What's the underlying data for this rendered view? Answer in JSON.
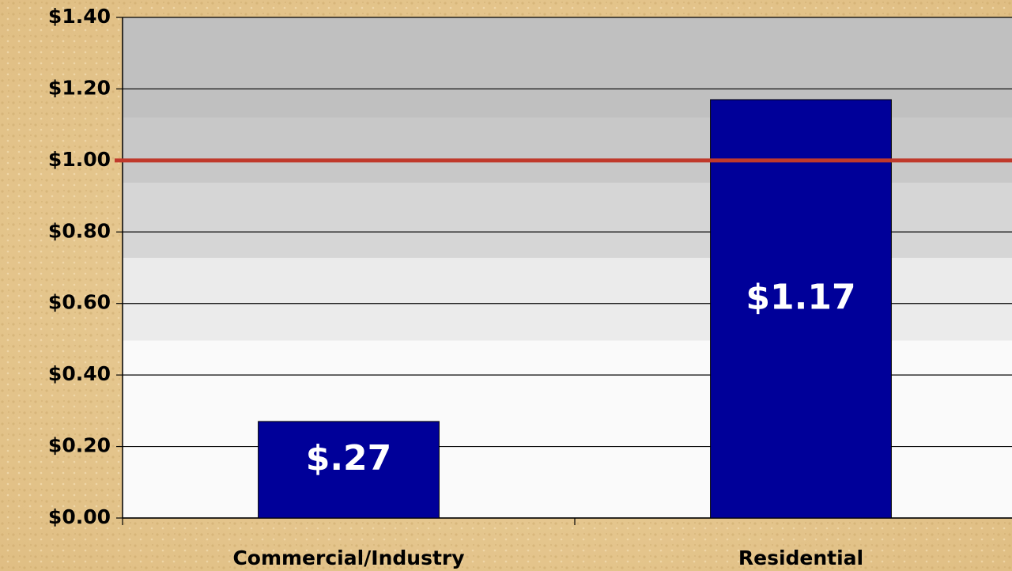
{
  "chart_data": {
    "type": "bar",
    "categories": [
      "Commercial/Industry",
      "Residential"
    ],
    "values": [
      0.27,
      1.17
    ],
    "value_labels": [
      "$.27",
      "$1.17"
    ],
    "color": "#000099",
    "ylim": [
      0,
      1.4
    ],
    "yticks": [
      {
        "value": 0,
        "label": "$0.00"
      },
      {
        "value": 0.2,
        "label": "$0.20"
      },
      {
        "value": 0.4,
        "label": "$0.40"
      },
      {
        "value": 0.6,
        "label": "$0.60"
      },
      {
        "value": 0.8,
        "label": "$0.80"
      },
      {
        "value": 1,
        "label": "$1.00"
      },
      {
        "value": 1.2,
        "label": "$1.20"
      },
      {
        "value": 1.4,
        "label": "$1.40"
      }
    ],
    "grid": true,
    "reference_line": {
      "value": 1,
      "color": "#c0392b"
    }
  }
}
